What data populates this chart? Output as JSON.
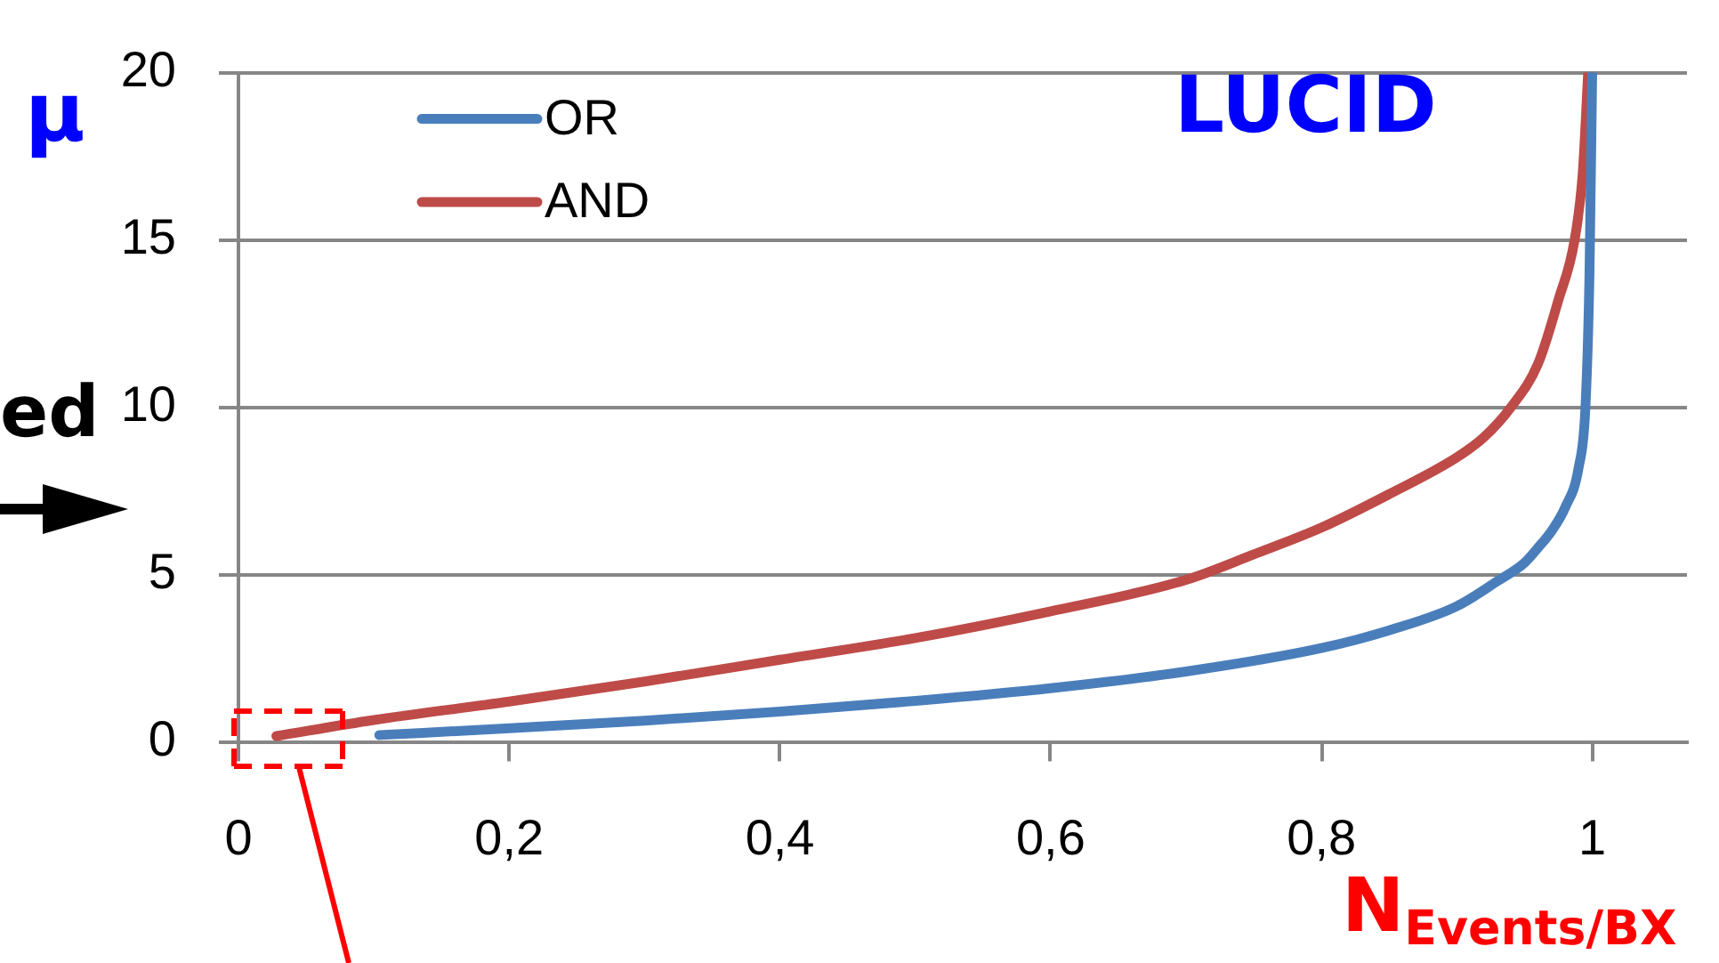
{
  "chart_data": {
    "type": "line",
    "xlabel": "N$_{Events/BX}$",
    "ylabel": "μ",
    "annotations": [
      "LUCID",
      "ed"
    ],
    "series": [
      {
        "name": "OR",
        "color": "#4a7ebb",
        "x": [
          0.104,
          0.2,
          0.3,
          0.4,
          0.5,
          0.6,
          0.7,
          0.8,
          0.85,
          0.9,
          0.93,
          0.95,
          0.96,
          0.97,
          0.98,
          0.99,
          0.995,
          0.998,
          1.0
        ],
        "values": [
          0.2,
          0.4,
          0.63,
          0.9,
          1.22,
          1.6,
          2.1,
          2.8,
          3.33,
          4.05,
          4.8,
          5.35,
          5.8,
          6.3,
          7.0,
          8.2,
          10,
          14,
          20
        ]
      },
      {
        "name": "AND",
        "color": "#be4b48",
        "x": [
          0.028,
          0.1,
          0.2,
          0.3,
          0.4,
          0.5,
          0.6,
          0.7,
          0.75,
          0.8,
          0.85,
          0.9,
          0.92,
          0.94,
          0.96,
          0.975,
          0.987,
          0.993,
          0.997
        ],
        "values": [
          0.17,
          0.65,
          1.2,
          1.8,
          2.45,
          3.1,
          3.9,
          4.84,
          5.6,
          6.4,
          7.4,
          8.5,
          9.1,
          10,
          11.3,
          13.2,
          15,
          17,
          20
        ]
      }
    ],
    "xlim": [
      0,
      1.07
    ],
    "ylim": [
      0,
      20
    ],
    "xticks": [
      0,
      {
        "value": 0.2,
        "label": "0,2"
      },
      {
        "value": 0.4,
        "label": "0,4"
      },
      {
        "value": 0.6,
        "label": "0,6"
      },
      {
        "value": 0.8,
        "label": "0,8"
      },
      1
    ],
    "yticks": [
      0,
      5,
      10,
      15,
      20
    ],
    "grid": "y",
    "legend": "top left",
    "line_style": "solid"
  }
}
